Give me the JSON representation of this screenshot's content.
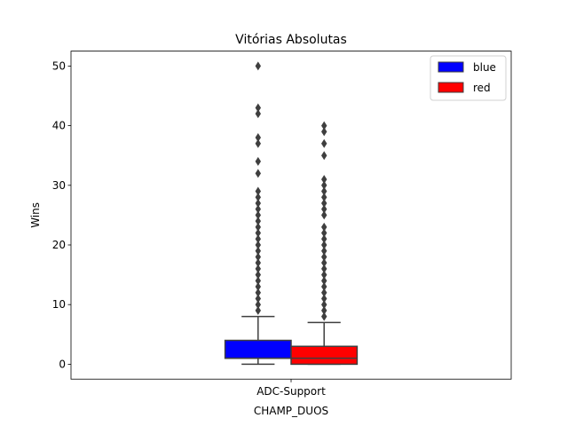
{
  "chart_data": {
    "type": "box",
    "title": "Vitórias Absolutas",
    "xlabel": "CHAMP_DUOS",
    "ylabel": "Wins",
    "categories": [
      "ADC-Support"
    ],
    "ylim": [
      -2.5,
      52.5
    ],
    "yticks": [
      0,
      10,
      20,
      30,
      40,
      50
    ],
    "legend": {
      "position": "top-right"
    },
    "series": [
      {
        "name": "blue",
        "color": "#0000ff",
        "whisker_low": 0,
        "q1": 1,
        "median": 1,
        "q3": 4,
        "whisker_high": 8,
        "outliers": [
          9,
          10,
          11,
          12,
          13,
          14,
          15,
          16,
          17,
          18,
          19,
          20,
          21,
          22,
          23,
          24,
          25,
          26,
          27,
          28,
          29,
          32,
          34,
          37,
          38,
          42,
          43,
          50
        ]
      },
      {
        "name": "red",
        "color": "#ff0000",
        "whisker_low": 0,
        "q1": 0,
        "median": 1,
        "q3": 3,
        "whisker_high": 7,
        "outliers": [
          8,
          9,
          10,
          11,
          12,
          13,
          14,
          15,
          16,
          17,
          18,
          19,
          20,
          21,
          22,
          23,
          25,
          26,
          27,
          28,
          29,
          30,
          31,
          35,
          37,
          39,
          40
        ]
      }
    ]
  }
}
